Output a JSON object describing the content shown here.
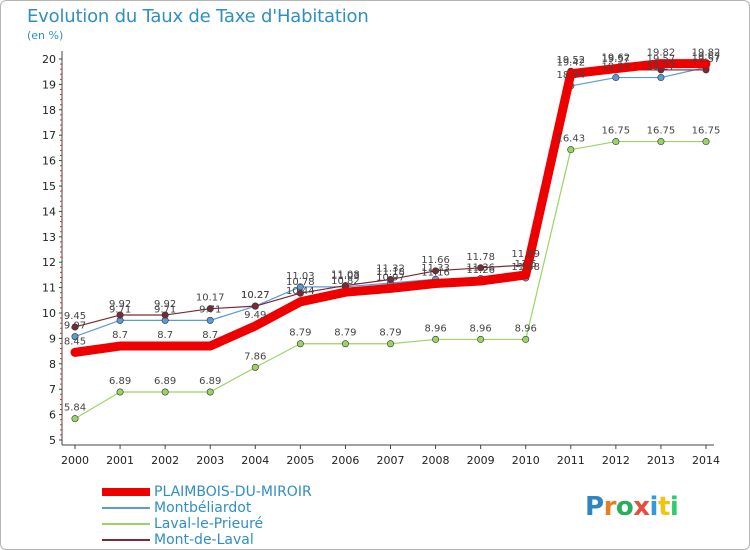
{
  "title": "Evolution du Taux de Taxe d'Habitation",
  "subtitle": "(en %)",
  "logo": {
    "letters": [
      "P",
      "r",
      "o",
      "x",
      "i",
      "t",
      "i"
    ],
    "colors": [
      "#2e86c1",
      "#e67e22",
      "#27ae60",
      "#e74c3c",
      "#3498db",
      "#f1c40f",
      "#2ecc71"
    ]
  },
  "chart_data": {
    "type": "line",
    "x": [
      "2000",
      "2001",
      "2002",
      "2003",
      "2004",
      "2005",
      "2006",
      "2007",
      "2008",
      "2009",
      "2010",
      "2011",
      "2012",
      "2013",
      "2014"
    ],
    "yticks": [
      "5",
      "6",
      "7",
      "8",
      "9",
      "10",
      "11",
      "12",
      "13",
      "14",
      "15",
      "16",
      "17",
      "18",
      "19",
      "20"
    ],
    "ylim": [
      5,
      20
    ],
    "grid": false,
    "legend_position": "bottom-left",
    "series": [
      {
        "name": "PLAIMBOIS-DU-MIROIR",
        "color": "#ee0000",
        "width": 9,
        "values": [
          8.45,
          8.7,
          8.7,
          8.7,
          9.49,
          10.44,
          10.82,
          10.97,
          11.16,
          11.26,
          11.5,
          19.42,
          19.62,
          19.82,
          19.82
        ],
        "labels": [
          "8.45",
          "8.7",
          "8.7",
          "8.7",
          "9.49",
          "10.44",
          "10.82",
          "10.97",
          "11.16",
          "11.26",
          "11.5",
          "19.42",
          "19.62",
          "19.82",
          "19.82"
        ]
      },
      {
        "name": "Montbéliardot",
        "color": "#5b9bd5",
        "width": 1.2,
        "values": [
          9.07,
          9.71,
          9.71,
          9.71,
          10.27,
          11.03,
          11.03,
          11.18,
          11.33,
          11.36,
          11.38,
          18.94,
          19.27,
          19.27,
          19.67
        ],
        "labels": [
          "9.07",
          "9.71",
          "9.71",
          "9.71",
          "10.27",
          "11.03",
          "11.03",
          "11.18",
          "11.33",
          "11.36",
          "11.38",
          "18.94",
          "19.27",
          "19.27",
          "19.67"
        ]
      },
      {
        "name": "Laval-le-Prieuré",
        "color": "#9bd466",
        "width": 1.2,
        "values": [
          5.84,
          6.89,
          6.89,
          6.89,
          7.86,
          8.79,
          8.79,
          8.79,
          8.96,
          8.96,
          8.96,
          16.43,
          16.75,
          16.75,
          16.75
        ],
        "labels": [
          "5.84",
          "6.89",
          "6.89",
          "6.89",
          "7.86",
          "8.79",
          "8.79",
          "8.79",
          "8.96",
          "8.96",
          "8.96",
          "16.43",
          "16.75",
          "16.75",
          "16.75"
        ]
      },
      {
        "name": "Mont-de-Laval",
        "color": "#7a2a35",
        "width": 1.2,
        "values": [
          9.45,
          9.92,
          9.92,
          10.17,
          10.27,
          10.78,
          11.08,
          11.32,
          11.66,
          11.78,
          11.89,
          19.52,
          19.57,
          19.57,
          19.57
        ],
        "labels": [
          "9.45",
          "9.92",
          "9.92",
          "10.17",
          "10.27",
          "10.78",
          "11.08",
          "11.32",
          "11.66",
          "11.78",
          "11.89",
          "19.52",
          "19.57",
          "19.57",
          "19.57"
        ]
      }
    ]
  }
}
